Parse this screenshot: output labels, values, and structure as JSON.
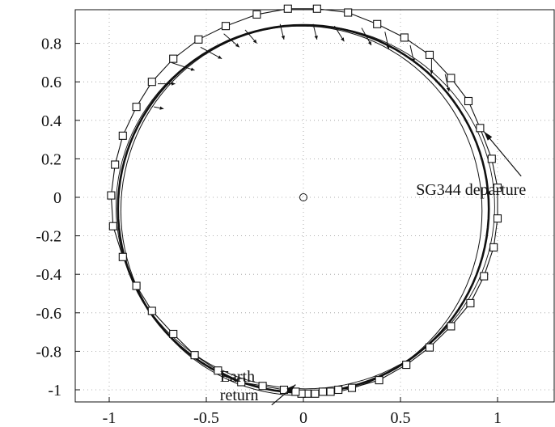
{
  "chart_data": {
    "type": "line",
    "title": "",
    "xlabel": "",
    "ylabel": "",
    "xlim": [
      -1.05,
      1.3
    ],
    "ylim": [
      -1.06,
      0.98
    ],
    "grid": "dotted",
    "x_ticks": [
      {
        "value": -1,
        "label": "-1"
      },
      {
        "value": -0.5,
        "label": "-0.5"
      },
      {
        "value": 0,
        "label": "0"
      },
      {
        "value": 0.5,
        "label": "0.5"
      },
      {
        "value": 1,
        "label": "1"
      }
    ],
    "y_ticks": [
      {
        "value": 0.8,
        "label": "0.8"
      },
      {
        "value": 0.6,
        "label": "0.6"
      },
      {
        "value": 0.4,
        "label": "0.4"
      },
      {
        "value": 0.2,
        "label": "0.2"
      },
      {
        "value": 0,
        "label": "0"
      },
      {
        "value": -0.2,
        "label": "-0.2"
      },
      {
        "value": -0.4,
        "label": "-0.4"
      },
      {
        "value": -0.6,
        "label": "-0.6"
      },
      {
        "value": -0.8,
        "label": "-0.8"
      },
      {
        "value": -1,
        "label": "-1"
      }
    ],
    "center_marker": {
      "x": 0,
      "y": 0
    },
    "outer_orbit_squares": [
      [
        -0.99,
        0.01
      ],
      [
        -0.97,
        0.17
      ],
      [
        -0.93,
        0.32
      ],
      [
        -0.86,
        0.47
      ],
      [
        -0.78,
        0.6
      ],
      [
        -0.67,
        0.72
      ],
      [
        -0.54,
        0.82
      ],
      [
        -0.4,
        0.89
      ],
      [
        -0.24,
        0.95
      ],
      [
        -0.08,
        0.98
      ],
      [
        0.07,
        0.98
      ],
      [
        0.23,
        0.96
      ],
      [
        0.38,
        0.9
      ],
      [
        0.52,
        0.83
      ],
      [
        0.65,
        0.74
      ],
      [
        0.76,
        0.62
      ],
      [
        0.85,
        0.5
      ],
      [
        0.91,
        0.36
      ],
      [
        0.97,
        0.2
      ],
      [
        1.0,
        0.05
      ],
      [
        1.0,
        -0.11
      ],
      [
        0.98,
        -0.26
      ],
      [
        0.93,
        -0.41
      ],
      [
        0.86,
        -0.55
      ],
      [
        0.76,
        -0.67
      ],
      [
        0.65,
        -0.78
      ],
      [
        0.53,
        -0.87
      ],
      [
        0.39,
        -0.95
      ],
      [
        0.25,
        -0.99
      ],
      [
        0.18,
        -1.0
      ],
      [
        0.14,
        -1.01
      ],
      [
        0.1,
        -1.01
      ],
      [
        0.06,
        -1.02
      ],
      [
        0.02,
        -1.02
      ],
      [
        -0.01,
        -1.02
      ],
      [
        -0.04,
        -1.01
      ],
      [
        -0.1,
        -1.0
      ],
      [
        -0.21,
        -0.98
      ],
      [
        -0.32,
        -0.96
      ],
      [
        -0.44,
        -0.9
      ],
      [
        -0.56,
        -0.82
      ],
      [
        -0.67,
        -0.71
      ],
      [
        -0.78,
        -0.59
      ],
      [
        -0.86,
        -0.46
      ],
      [
        -0.93,
        -0.31
      ],
      [
        -0.98,
        -0.15
      ]
    ],
    "arrows": [
      [
        -0.68,
        0.7,
        -0.56,
        0.66
      ],
      [
        -0.53,
        0.78,
        -0.42,
        0.72
      ],
      [
        -0.41,
        0.85,
        -0.33,
        0.78
      ],
      [
        -0.3,
        0.87,
        -0.24,
        0.8
      ],
      [
        -0.12,
        0.9,
        -0.1,
        0.82
      ],
      [
        0.05,
        0.9,
        0.07,
        0.82
      ],
      [
        0.16,
        0.89,
        0.21,
        0.81
      ],
      [
        0.3,
        0.88,
        0.35,
        0.79
      ],
      [
        0.42,
        0.86,
        0.44,
        0.77
      ],
      [
        0.55,
        0.79,
        0.57,
        0.7
      ],
      [
        0.66,
        0.72,
        0.66,
        0.64
      ],
      [
        0.73,
        0.64,
        0.75,
        0.55
      ],
      [
        -0.75,
        0.59,
        -0.66,
        0.59
      ],
      [
        -0.77,
        0.47,
        -0.72,
        0.46
      ],
      [
        -0.08,
        -1.0,
        -0.02,
        -1.02
      ],
      [
        0.05,
        -1.01,
        0.1,
        -1.01
      ]
    ],
    "annotations": [
      {
        "text": "SG344 departure",
        "anchor_label": "SG344 departure",
        "x": 0.58,
        "y": 0.16,
        "arrow_to": [
          0.93,
          0.35
        ]
      },
      {
        "text": "Earth\nreturn",
        "line1": "Earth",
        "line2": "return",
        "x": -0.43,
        "y": -0.68,
        "arrow_to": [
          -0.04,
          -0.99
        ]
      }
    ]
  }
}
